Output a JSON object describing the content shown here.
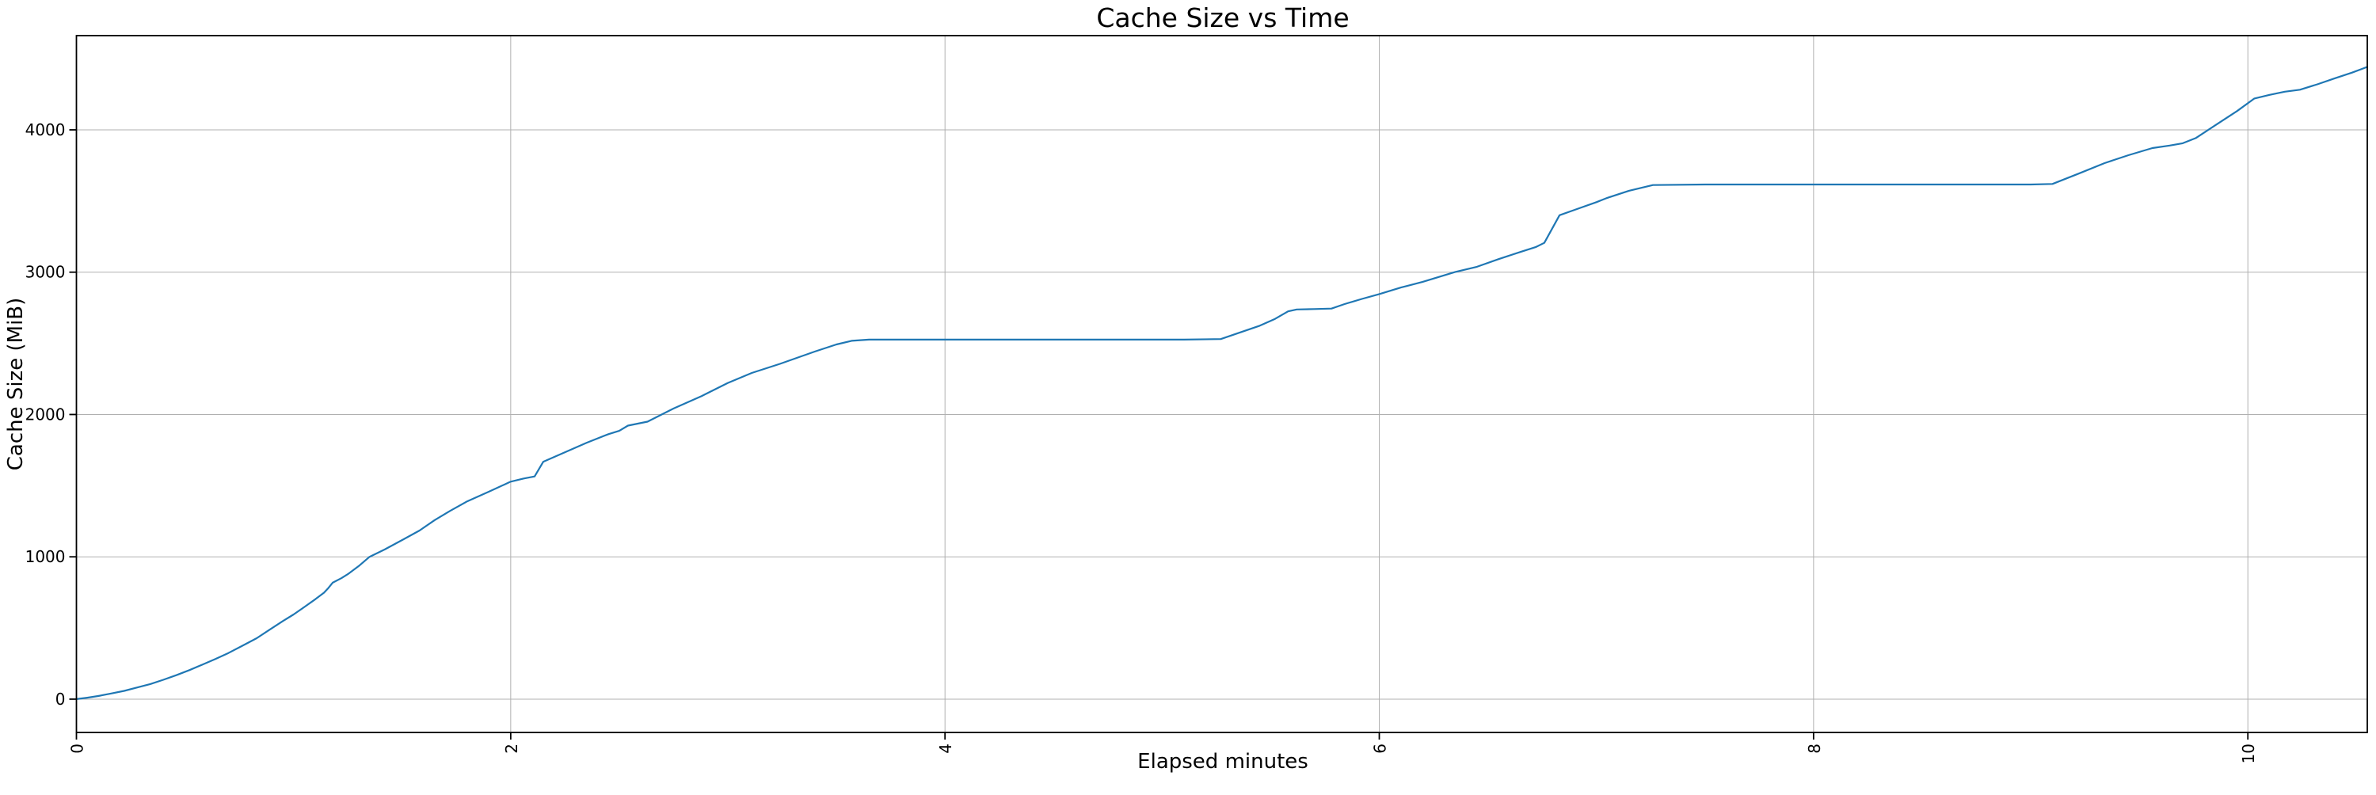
{
  "chart_data": {
    "type": "line",
    "title": "Cache Size vs Time",
    "xlabel": "Elapsed minutes",
    "ylabel": "Cache Size (MiB)",
    "x_ticks": [
      0,
      2,
      4,
      6,
      8,
      10
    ],
    "y_ticks": [
      0,
      1000,
      2000,
      3000,
      4000
    ],
    "xlim": [
      0,
      10.55
    ],
    "ylim": [
      -234,
      4662
    ],
    "grid": true,
    "legend": "none",
    "line_color": "#1f77b4",
    "grid_color": "#b0b0b0",
    "spine_color": "#000000",
    "background_color": "#ffffff",
    "series": [
      {
        "name": "cache-size-mib",
        "points": [
          [
            0.0,
            0
          ],
          [
            0.05,
            10
          ],
          [
            0.1,
            22
          ],
          [
            0.16,
            40
          ],
          [
            0.22,
            58
          ],
          [
            0.28,
            82
          ],
          [
            0.34,
            106
          ],
          [
            0.4,
            136
          ],
          [
            0.46,
            168
          ],
          [
            0.52,
            204
          ],
          [
            0.58,
            242
          ],
          [
            0.64,
            282
          ],
          [
            0.7,
            324
          ],
          [
            0.76,
            372
          ],
          [
            0.83,
            428
          ],
          [
            0.89,
            488
          ],
          [
            0.95,
            548
          ],
          [
            1.0,
            595
          ],
          [
            1.05,
            648
          ],
          [
            1.1,
            702
          ],
          [
            1.14,
            748
          ],
          [
            1.16,
            780
          ],
          [
            1.18,
            818
          ],
          [
            1.22,
            850
          ],
          [
            1.25,
            878
          ],
          [
            1.3,
            935
          ],
          [
            1.35,
            1000
          ],
          [
            1.42,
            1052
          ],
          [
            1.5,
            1118
          ],
          [
            1.58,
            1185
          ],
          [
            1.65,
            1258
          ],
          [
            1.72,
            1322
          ],
          [
            1.8,
            1390
          ],
          [
            1.9,
            1458
          ],
          [
            2.0,
            1528
          ],
          [
            2.06,
            1550
          ],
          [
            2.11,
            1565
          ],
          [
            2.15,
            1668
          ],
          [
            2.25,
            1735
          ],
          [
            2.35,
            1802
          ],
          [
            2.45,
            1862
          ],
          [
            2.5,
            1885
          ],
          [
            2.54,
            1922
          ],
          [
            2.63,
            1950
          ],
          [
            2.75,
            2042
          ],
          [
            2.88,
            2130
          ],
          [
            3.0,
            2222
          ],
          [
            3.11,
            2292
          ],
          [
            3.24,
            2356
          ],
          [
            3.4,
            2442
          ],
          [
            3.5,
            2492
          ],
          [
            3.57,
            2518
          ],
          [
            3.65,
            2526
          ],
          [
            4.0,
            2526
          ],
          [
            4.4,
            2526
          ],
          [
            4.8,
            2526
          ],
          [
            5.1,
            2526
          ],
          [
            5.27,
            2530
          ],
          [
            5.35,
            2572
          ],
          [
            5.45,
            2624
          ],
          [
            5.52,
            2672
          ],
          [
            5.58,
            2725
          ],
          [
            5.62,
            2738
          ],
          [
            5.7,
            2741
          ],
          [
            5.78,
            2744
          ],
          [
            5.84,
            2776
          ],
          [
            5.92,
            2812
          ],
          [
            6.0,
            2846
          ],
          [
            6.1,
            2892
          ],
          [
            6.2,
            2932
          ],
          [
            6.35,
            3002
          ],
          [
            6.45,
            3038
          ],
          [
            6.55,
            3092
          ],
          [
            6.65,
            3142
          ],
          [
            6.72,
            3176
          ],
          [
            6.76,
            3206
          ],
          [
            6.83,
            3400
          ],
          [
            6.9,
            3438
          ],
          [
            7.0,
            3492
          ],
          [
            7.05,
            3522
          ],
          [
            7.15,
            3572
          ],
          [
            7.26,
            3612
          ],
          [
            7.5,
            3616
          ],
          [
            8.0,
            3616
          ],
          [
            8.5,
            3616
          ],
          [
            9.0,
            3616
          ],
          [
            9.1,
            3620
          ],
          [
            9.22,
            3692
          ],
          [
            9.34,
            3766
          ],
          [
            9.45,
            3822
          ],
          [
            9.56,
            3872
          ],
          [
            9.64,
            3890
          ],
          [
            9.7,
            3906
          ],
          [
            9.76,
            3942
          ],
          [
            9.85,
            4032
          ],
          [
            9.95,
            4132
          ],
          [
            10.03,
            4220
          ],
          [
            10.1,
            4246
          ],
          [
            10.17,
            4268
          ],
          [
            10.24,
            4282
          ],
          [
            10.32,
            4320
          ],
          [
            10.4,
            4362
          ],
          [
            10.48,
            4402
          ],
          [
            10.55,
            4442
          ]
        ]
      }
    ]
  }
}
